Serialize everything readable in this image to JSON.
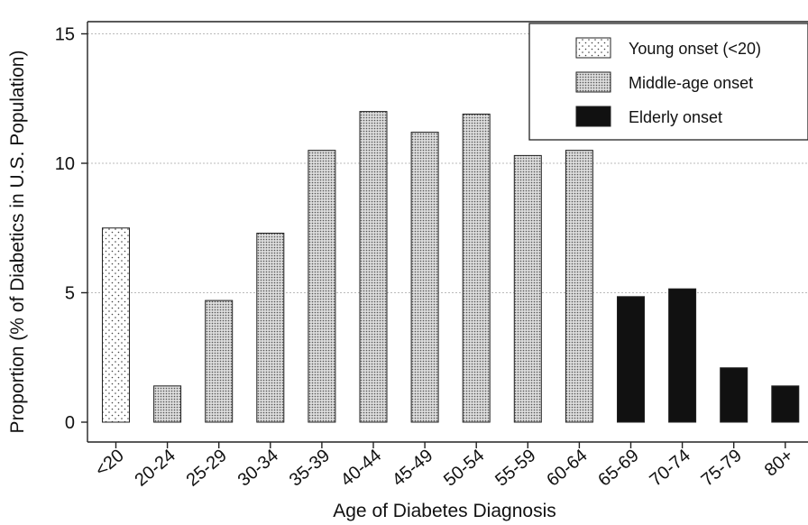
{
  "chart_data": {
    "type": "bar",
    "xlabel": "Age of Diabetes Diagnosis",
    "ylabel": "Proportion (% of Diabetics in U.S. Population)",
    "ylim": [
      0,
      16
    ],
    "yticks": [
      0,
      5,
      10,
      15
    ],
    "grid": "horizontal dotted",
    "legend_position": "top-right",
    "categories": [
      "<20",
      "20-24",
      "25-29",
      "30-34",
      "35-39",
      "40-44",
      "45-49",
      "50-54",
      "55-59",
      "60-64",
      "65-69",
      "70-74",
      "75-79",
      "80+"
    ],
    "values": [
      7.5,
      1.4,
      4.7,
      7.3,
      10.5,
      12.0,
      11.2,
      11.9,
      10.3,
      10.5,
      4.85,
      5.15,
      2.1,
      1.4
    ],
    "groups": [
      "young",
      "middle",
      "middle",
      "middle",
      "middle",
      "middle",
      "middle",
      "middle",
      "middle",
      "middle",
      "elderly",
      "elderly",
      "elderly",
      "elderly"
    ],
    "legend": [
      {
        "key": "young",
        "label": "Young onset (<20)",
        "pattern": "sparse-dots"
      },
      {
        "key": "middle",
        "label": "Middle-age onset",
        "pattern": "dense-dots"
      },
      {
        "key": "elderly",
        "label": "Elderly onset",
        "pattern": "solid-black"
      }
    ],
    "colors": {
      "elderly": "#111111",
      "dots": "#555555",
      "bar_border": "#222222"
    }
  }
}
